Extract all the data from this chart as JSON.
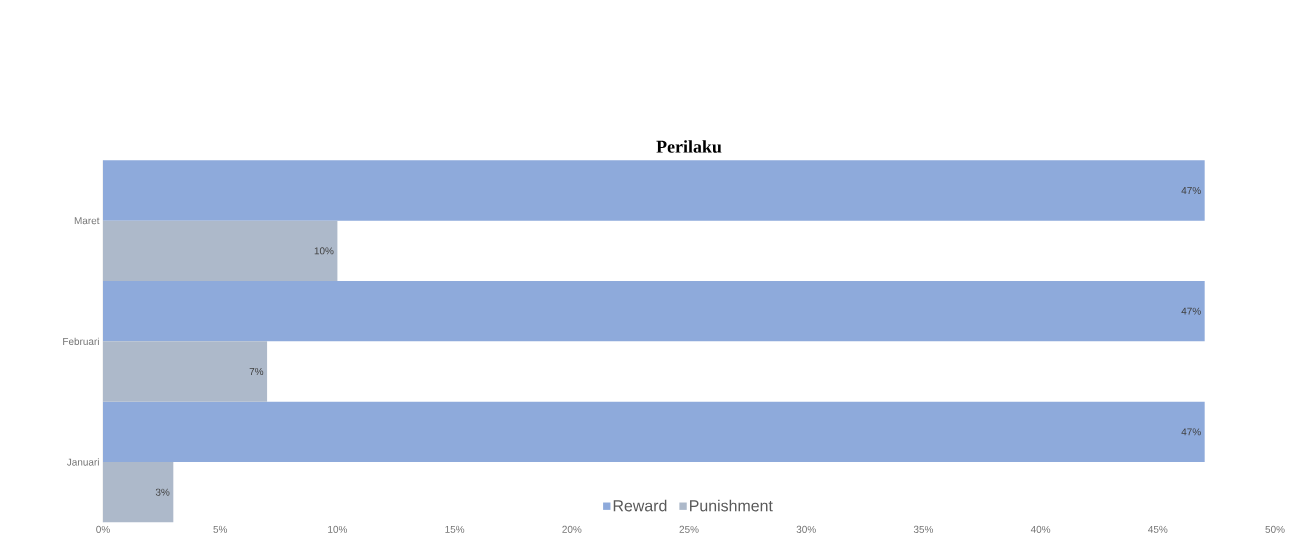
{
  "chart_data": {
    "type": "bar",
    "orientation": "horizontal",
    "title": "Perilaku",
    "categories": [
      "Maret",
      "Februari",
      "Januari"
    ],
    "series": [
      {
        "name": "Reward",
        "color": "#8eaadb",
        "values": [
          47,
          47,
          47
        ],
        "value_labels": [
          "47%",
          "47%",
          "47%"
        ]
      },
      {
        "name": "Punishment",
        "color": "#adb9ca",
        "values": [
          10,
          7,
          3
        ],
        "value_labels": [
          "10%",
          "7%",
          "3%"
        ]
      }
    ],
    "xlim": [
      0,
      50
    ],
    "xticks": [
      {
        "value": 0,
        "label": "0%"
      },
      {
        "value": 5,
        "label": "5%"
      },
      {
        "value": 10,
        "label": "10%"
      },
      {
        "value": 15,
        "label": "15%"
      },
      {
        "value": 20,
        "label": "20%"
      },
      {
        "value": 25,
        "label": "25%"
      },
      {
        "value": 30,
        "label": "30%"
      },
      {
        "value": 35,
        "label": "35%"
      },
      {
        "value": 40,
        "label": "40%"
      },
      {
        "value": 45,
        "label": "45%"
      },
      {
        "value": 50,
        "label": "50%"
      }
    ],
    "legend": "bottom",
    "grid": false
  }
}
